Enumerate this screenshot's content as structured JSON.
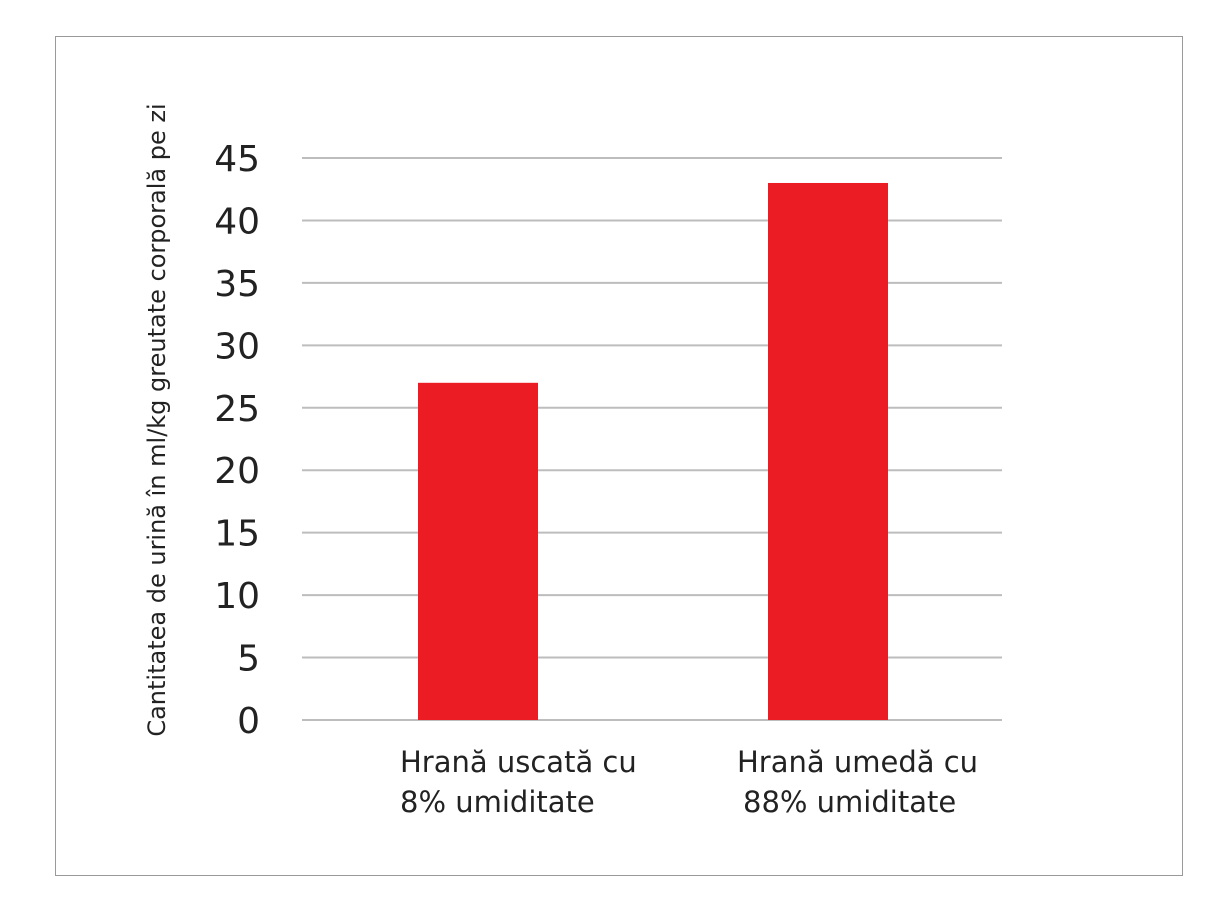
{
  "chart_data": {
    "type": "bar",
    "title": "",
    "xlabel": "",
    "ylabel": "Cantitatea de urină în ml/kg greutate corporală pe zi",
    "categories": [
      [
        "Hrană uscată cu",
        "8% umiditate"
      ],
      [
        "Hrană umedă cu",
        "88% umiditate"
      ]
    ],
    "values": [
      27,
      43
    ],
    "ylim": [
      0,
      45
    ],
    "yticks": [
      0,
      5,
      10,
      15,
      20,
      25,
      30,
      35,
      40,
      45
    ],
    "grid": true,
    "legend": "none",
    "bar_color": "#ec1c24",
    "grid_color": "#bdbdbd"
  }
}
